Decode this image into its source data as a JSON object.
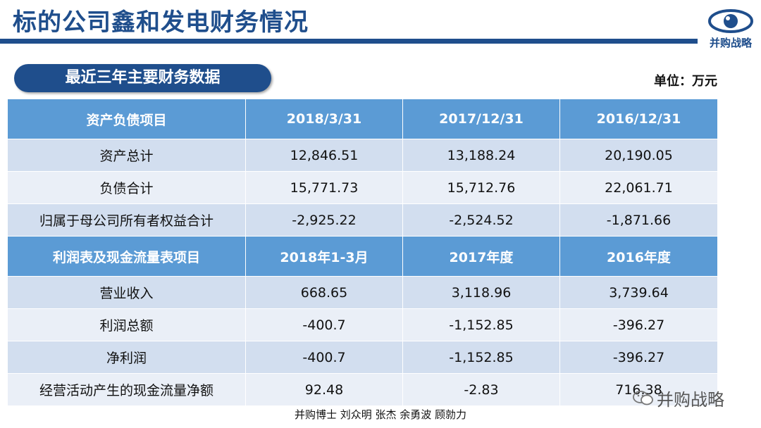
{
  "slide": {
    "title": "标的公司鑫和发电财务情况",
    "logo_text": "并购战略",
    "section_title": "最近三年主要财务数据",
    "unit": "单位：万元"
  },
  "table": {
    "balance_header": [
      "资产负债项目",
      "2018/3/31",
      "2017/12/31",
      "2016/12/31"
    ],
    "balance_rows": [
      [
        "资产总计",
        "12,846.51",
        "13,188.24",
        "20,190.05"
      ],
      [
        "负债合计",
        "15,771.73",
        "15,712.76",
        "22,061.71"
      ],
      [
        "归属于母公司所有者权益合计",
        "-2,925.22",
        "-2,524.52",
        "-1,871.66"
      ]
    ],
    "income_header": [
      "利润表及现金流量表项目",
      "2018年1-3月",
      "2017年度",
      "2016年度"
    ],
    "income_rows": [
      [
        "营业收入",
        "668.65",
        "3,118.96",
        "3,739.64"
      ],
      [
        "利润总额",
        "-400.7",
        "-1,152.85",
        "-396.27"
      ],
      [
        "净利润",
        "-400.7",
        "-1,152.85",
        "-396.27"
      ],
      [
        "经营活动产生的现金流量净额",
        "92.48",
        "-2.83",
        "716.38"
      ]
    ]
  },
  "footer": {
    "authors": "并购博士 刘众明 张杰 余勇波 顾勍力",
    "watermark": "并购战略"
  },
  "colors": {
    "brand": "#1f4e8c",
    "header": "#5b9bd5",
    "row_dark": "#d2deef",
    "row_light": "#eaeff7"
  }
}
